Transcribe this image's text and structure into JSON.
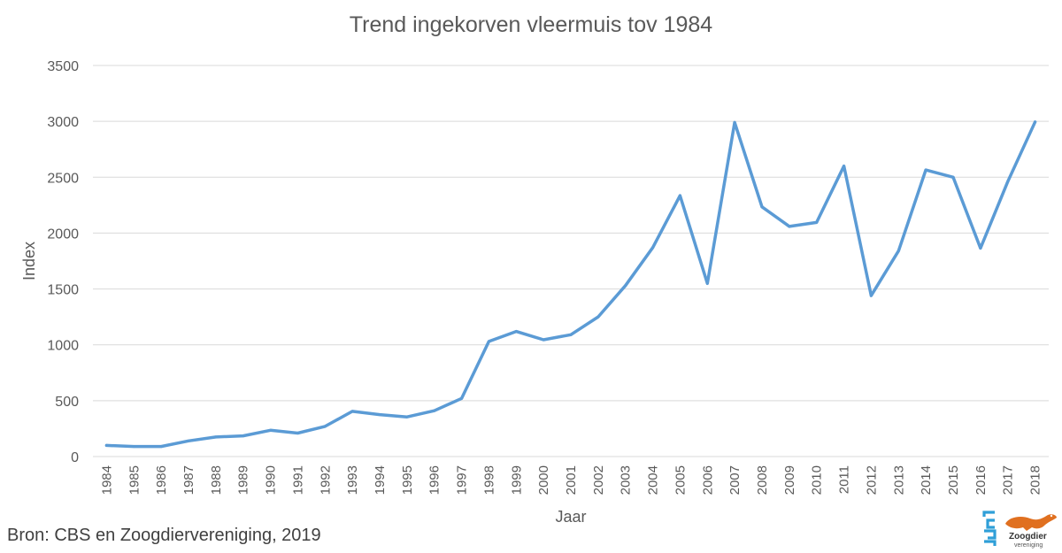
{
  "chart_data": {
    "type": "line",
    "title": "Trend ingekorven vleermuis tov 1984",
    "xlabel": "Jaar",
    "ylabel": "Index",
    "ylim": [
      0,
      3500
    ],
    "yticks": [
      0,
      500,
      1000,
      1500,
      2000,
      2500,
      3000,
      3500
    ],
    "grid": true,
    "legend": "none",
    "categories": [
      "1984",
      "1985",
      "1986",
      "1987",
      "1988",
      "1989",
      "1990",
      "1991",
      "1992",
      "1993",
      "1994",
      "1995",
      "1996",
      "1997",
      "1998",
      "1999",
      "2000",
      "2001",
      "2002",
      "2003",
      "2004",
      "2005",
      "2006",
      "2007",
      "2008",
      "2009",
      "2010",
      "2011",
      "2012",
      "2013",
      "2014",
      "2015",
      "2016",
      "2017",
      "2018"
    ],
    "series": [
      {
        "values": [
          100,
          90,
          90,
          140,
          175,
          185,
          235,
          210,
          270,
          405,
          375,
          355,
          410,
          520,
          1030,
          1120,
          1045,
          1090,
          1250,
          1530,
          1870,
          2335,
          1550,
          2990,
          2235,
          2060,
          2095,
          2600,
          1440,
          1840,
          2565,
          2500,
          1865,
          2460,
          2995
        ],
        "color": "#5b9bd5"
      }
    ]
  },
  "source": "Bron: CBS en Zoogdiervereniging, 2019",
  "logo": {
    "name": "cbs-zoogdiervereniging-logo",
    "text_top": "Zoogdier",
    "text_bottom": "vereniging",
    "cbs_color": "#2f9fd8",
    "animal_color": "#e07020"
  }
}
